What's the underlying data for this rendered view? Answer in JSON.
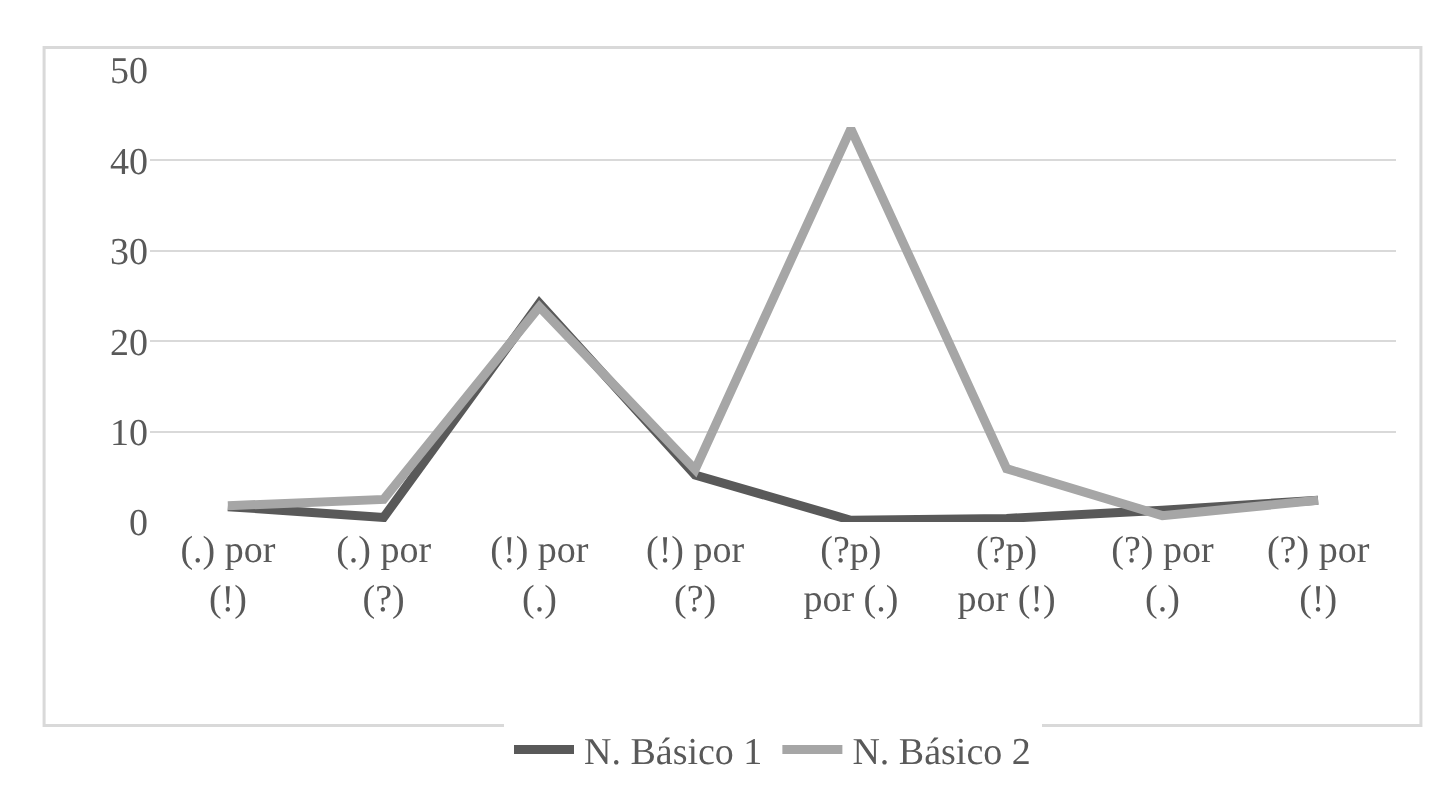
{
  "chart_data": {
    "type": "line",
    "categories": [
      "(.) por\n(!)",
      "(.) por\n(?)",
      "(!) por\n(.)",
      "(!) por\n(?)",
      "(?p)\npor (.)",
      "(?p)\npor (!)",
      "(?) por\n(.)",
      "(?) por\n(!)"
    ],
    "series": [
      {
        "name": "N. Básico 1",
        "color": "#595959",
        "values": [
          1.7,
          0.5,
          24.2,
          5.2,
          0.2,
          0.4,
          1.3,
          2.4
        ]
      },
      {
        "name": "N. Básico 2",
        "color": "#a6a6a6",
        "values": [
          1.8,
          2.5,
          23.8,
          5.8,
          43.5,
          5.9,
          0.7,
          2.4
        ]
      }
    ],
    "ylim": [
      0,
      50
    ],
    "yticks": [
      0,
      10,
      20,
      30,
      40,
      50
    ],
    "grid": "y",
    "legend": "bottom",
    "marker": "none",
    "line_style": "solid"
  }
}
